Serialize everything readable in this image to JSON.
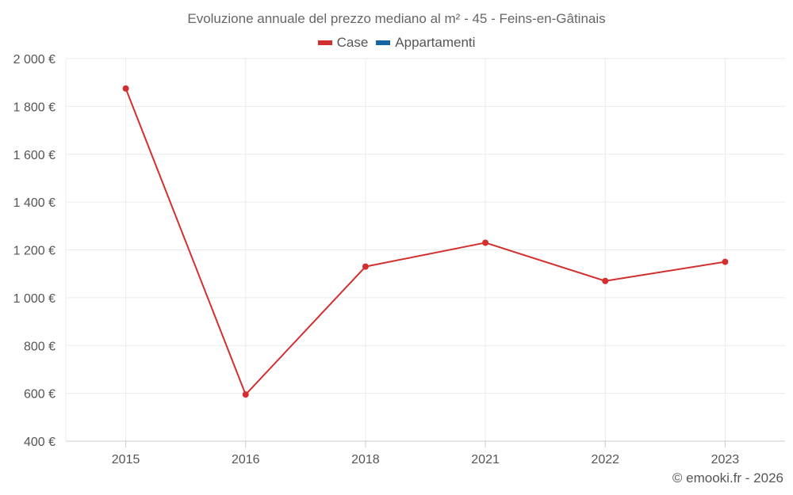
{
  "chart_data": {
    "type": "line",
    "title": "Evoluzione annuale del prezzo mediano al m² - 45 - Feins-en-Gâtinais",
    "categories": [
      "2015",
      "2016",
      "2018",
      "2021",
      "2022",
      "2023"
    ],
    "series": [
      {
        "name": "Case",
        "color": "#d32f2f",
        "values": [
          1875,
          595,
          1130,
          1230,
          1070,
          1150
        ]
      },
      {
        "name": "Appartamenti",
        "color": "#1565a0",
        "values": [
          null,
          null,
          null,
          null,
          null,
          null
        ]
      }
    ],
    "ylim": [
      400,
      2000
    ],
    "yticks": [
      400,
      600,
      800,
      1000,
      1200,
      1400,
      1600,
      1800,
      2000
    ],
    "ytick_labels": [
      "400 €",
      "600 €",
      "800 €",
      "1 000 €",
      "1 200 €",
      "1 400 €",
      "1 600 €",
      "1 800 €",
      "2 000 €"
    ],
    "xlabel": "",
    "ylabel": "",
    "legend_position": "top-center",
    "grid": true
  },
  "credit": "© emooki.fr - 2026"
}
